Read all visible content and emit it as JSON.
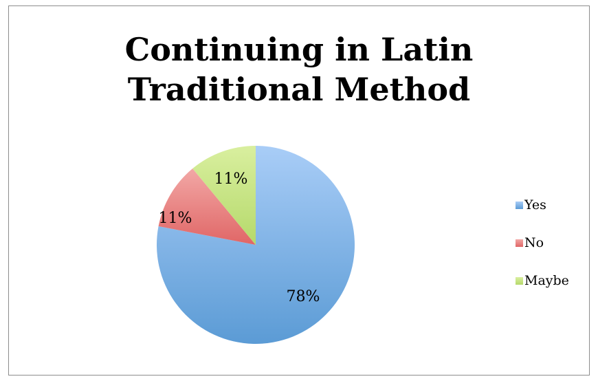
{
  "chart_data": {
    "type": "pie",
    "title": [
      "Continuing in Latin",
      "Traditional Method"
    ],
    "slices": [
      {
        "label": "Yes",
        "value": 78,
        "data_label": "78%",
        "color": "#5b9bd5",
        "color_light": "#a9cdf7"
      },
      {
        "label": "No",
        "value": 11,
        "data_label": "11%",
        "color": "#e06666",
        "color_light": "#f2a8a6"
      },
      {
        "label": "Maybe",
        "value": 11,
        "data_label": "11%",
        "color": "#b5d96b",
        "color_light": "#d9ef9f"
      }
    ],
    "legend_position": "right",
    "start_angle": "12 o'clock",
    "direction": "clockwise"
  }
}
